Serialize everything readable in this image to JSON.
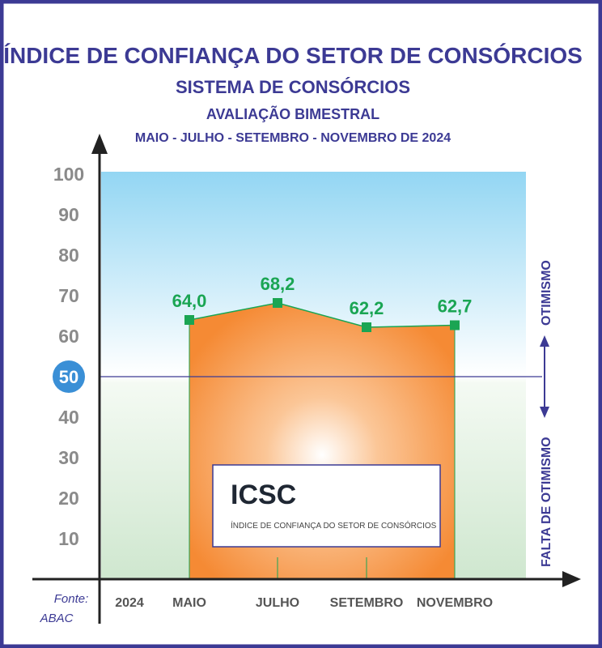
{
  "chart_data": {
    "type": "area",
    "title": "ÍNDICE DE CONFIANÇA DO SETOR DE CONSÓRCIOS",
    "subtitle": "SISTEMA DE CONSÓRCIOS",
    "subtitle2": "AVALIAÇÃO BIMESTRAL",
    "period": "MAIO - JULHO - SETEMBRO - NOVEMBRO DE 2024",
    "categories": [
      "MAIO",
      "JULHO",
      "SETEMBRO",
      "NOVEMBRO"
    ],
    "year_label": "2024",
    "values": [
      64.0,
      68.2,
      62.2,
      62.7
    ],
    "data_labels": [
      "64,0",
      "68,2",
      "62,2",
      "62,7"
    ],
    "yticks": [
      "10",
      "20",
      "30",
      "40",
      "50",
      "60",
      "70",
      "80",
      "90",
      "100"
    ],
    "ylim": [
      0,
      100
    ],
    "reference_line": 50,
    "reference_label": "50",
    "zone_above": "OTIMISMO",
    "zone_below": "FALTA DE OTIMISMO",
    "source": [
      "Fonte:",
      "ABAC"
    ],
    "logo": {
      "name": "ICSC",
      "text": "ÍNDICE DE CONFIANÇA DO SETOR DE CONSÓRCIOS"
    },
    "colors": {
      "title": "#3c3a94",
      "area": "#f58a34",
      "marker": "#1aa553",
      "label": "#1aa553",
      "axis_text": "#8a8a8a",
      "reference_badge": "#3a8fd6"
    }
  }
}
